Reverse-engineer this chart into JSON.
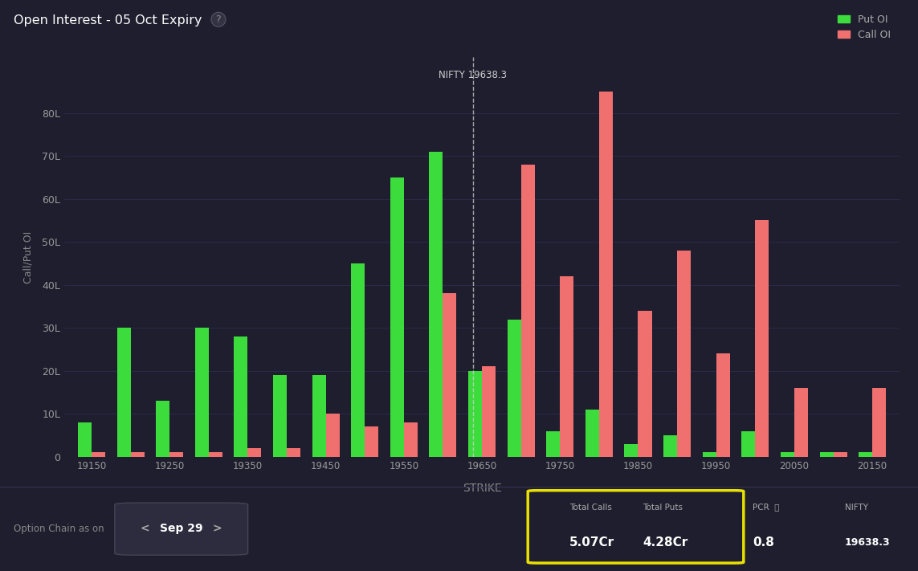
{
  "title": "Open Interest - 05 Oct Expiry",
  "bg_color": "#1e1e2e",
  "bg_color_chart": "#1e1e2e",
  "put_color": "#3ddc3d",
  "call_color": "#f07070",
  "nifty_line": 19638.3,
  "strikes": [
    19150,
    19200,
    19250,
    19300,
    19350,
    19400,
    19450,
    19500,
    19550,
    19600,
    19650,
    19700,
    19750,
    19800,
    19850,
    19900,
    19950,
    20000,
    20050,
    20100,
    20150
  ],
  "put_oi": [
    8,
    30,
    13,
    30,
    28,
    19,
    19,
    45,
    65,
    71,
    20,
    32,
    6,
    11,
    3,
    5,
    1,
    6,
    1,
    1,
    1
  ],
  "call_oi": [
    1,
    1,
    1,
    1,
    2,
    2,
    10,
    7,
    8,
    38,
    21,
    68,
    42,
    85,
    34,
    48,
    24,
    55,
    16,
    1,
    16
  ],
  "xtick_strikes": [
    19150,
    19250,
    19350,
    19450,
    19550,
    19650,
    19750,
    19850,
    19950,
    20050,
    20150
  ],
  "ylabel": "Call/Put OI",
  "xlabel": "STRIKE",
  "yticks": [
    0,
    10,
    20,
    30,
    40,
    50,
    60,
    70,
    80
  ],
  "ytick_labels": [
    "0",
    "10L",
    "20L",
    "30L",
    "40L",
    "50L",
    "60L",
    "70L",
    "80L"
  ],
  "date_label": "Sep 29",
  "total_calls": "5.07Cr",
  "total_puts": "4.28Cr",
  "pcr": "0.8",
  "nifty_val": "19638.3",
  "bar_width": 0.35
}
